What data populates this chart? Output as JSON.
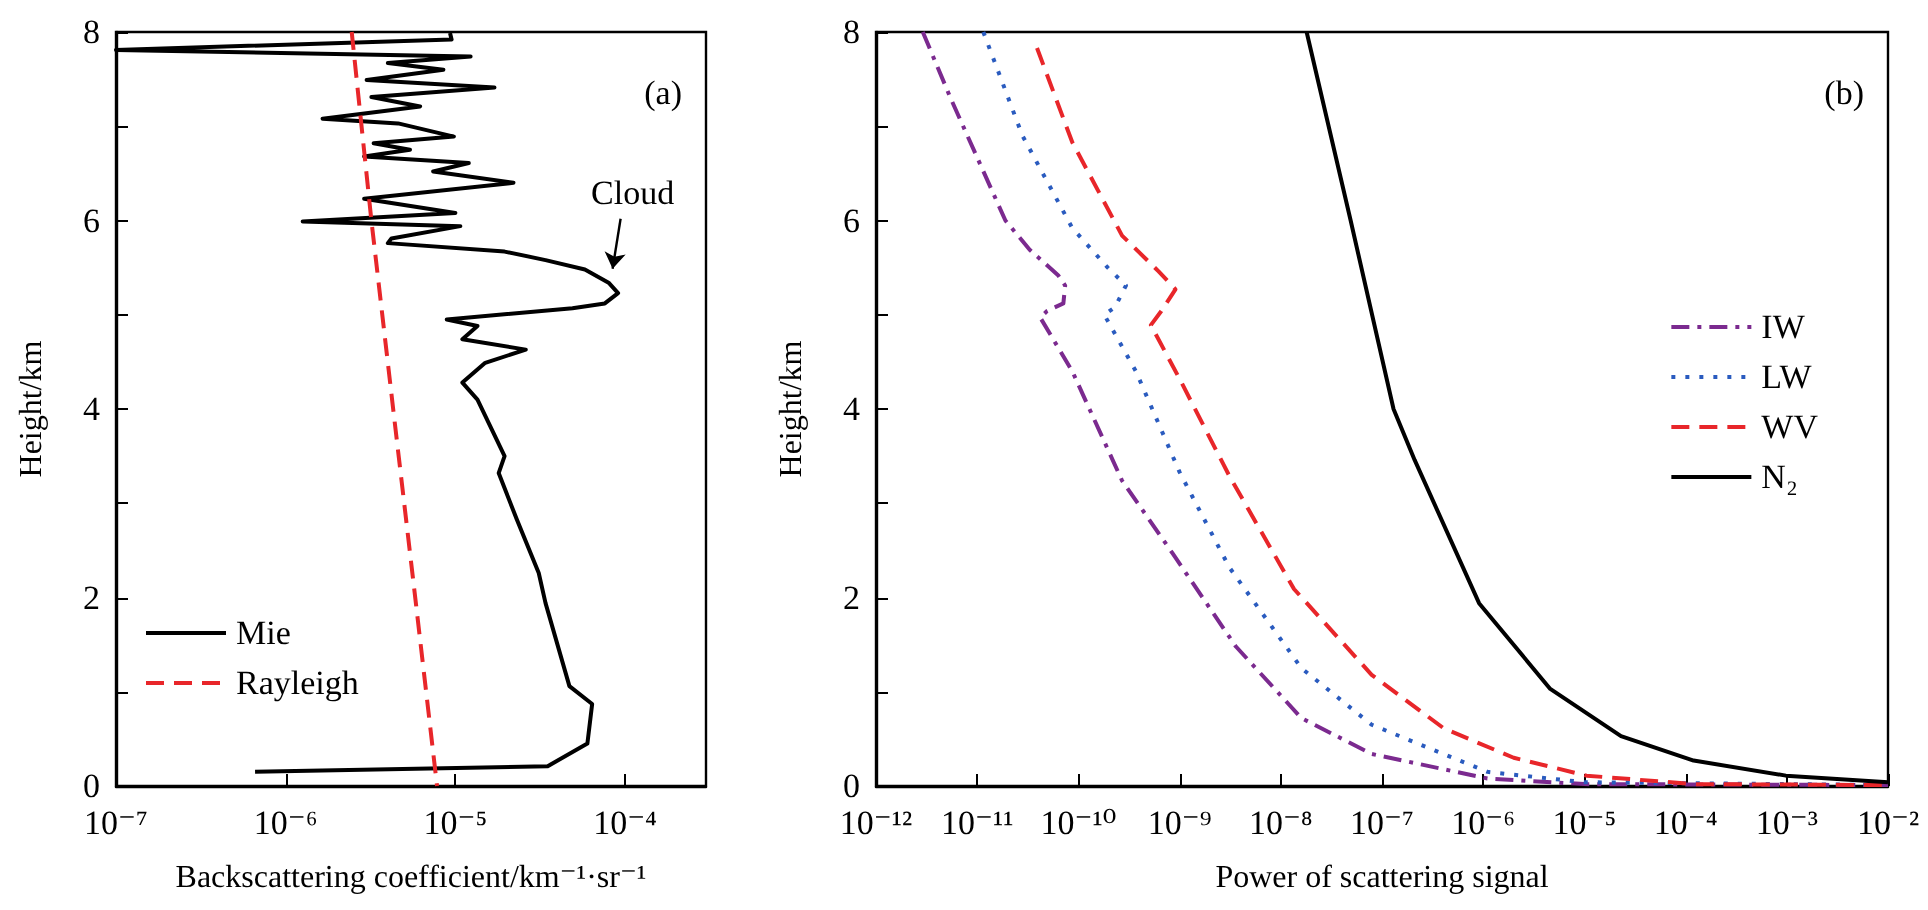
{
  "chart_data": [
    {
      "type": "line",
      "xlabel": "Backscattering coefficient/km⁻¹·sr⁻¹",
      "ylabel": "Height/km",
      "log": "x",
      "legend": "bottom left",
      "grid": false,
      "marker": "none",
      "annotations": [
        "(a)",
        {
          "text": "Cloud",
          "x": 8e-05,
          "y": 5.34
        }
      ],
      "xlim": [
        1e-07,
        0.0003
      ],
      "xticks": [
        {
          "value": 1e-07,
          "label": "10⁻⁷"
        },
        {
          "value": 1e-06,
          "label": "10⁻⁶"
        },
        {
          "value": 1e-05,
          "label": "10⁻⁵"
        },
        {
          "value": 0.0001,
          "label": "10⁻⁴"
        }
      ],
      "ylim": [
        0,
        8
      ],
      "yticks": [
        0,
        {
          "value": 1,
          "label": null
        },
        2,
        {
          "value": 3,
          "label": null
        },
        4,
        {
          "value": 5,
          "label": null
        },
        6,
        {
          "value": 7,
          "label": null
        },
        8
      ],
      "series": [
        {
          "name": "Mie",
          "color": "#000000",
          "line_style": "solid",
          "x": [
            9.3e-06,
            9.5e-06,
            1e-07,
            1.23e-05,
            4e-06,
            8.5e-06,
            3e-06,
            1.7e-05,
            3.2e-06,
            6.2e-06,
            1.65e-06,
            4.6e-06,
            9.8e-06,
            3.3e-06,
            5.4e-06,
            2.9e-06,
            1.2e-05,
            7.4e-06,
            2.2e-05,
            2.9e-06,
            1e-05,
            1.26e-06,
            1.07e-05,
            4.2e-06,
            4e-06,
            1.95e-05,
            3.4e-05,
            5.8e-05,
            8e-05,
            9.1e-05,
            7.6e-05,
            4.9e-05,
            8.9e-06,
            1.35e-05,
            1.1e-05,
            2.6e-05,
            1.5e-05,
            1.1e-05,
            1.35e-05,
            1.95e-05,
            1.8e-05,
            2.3e-05,
            3.1e-05,
            3.4e-05,
            4.7e-05,
            6.4e-05,
            6e-05,
            3.5e-05,
            6.6e-07
          ],
          "values": [
            7.99,
            7.92,
            7.81,
            7.74,
            7.67,
            7.6,
            7.49,
            7.41,
            7.31,
            7.21,
            7.08,
            7.03,
            6.89,
            6.82,
            6.75,
            6.68,
            6.61,
            6.52,
            6.4,
            6.23,
            6.08,
            5.99,
            5.94,
            5.81,
            5.76,
            5.67,
            5.58,
            5.48,
            5.34,
            5.23,
            5.12,
            5.07,
            4.95,
            4.88,
            4.74,
            4.63,
            4.49,
            4.28,
            4.1,
            3.5,
            3.32,
            2.83,
            2.26,
            1.94,
            1.06,
            0.87,
            0.45,
            0.21,
            0.15
          ]
        },
        {
          "name": "Rayleigh",
          "color": "#e8262a",
          "line_style": "dashed",
          "x": [
            2.45e-06,
            3.2e-06,
            4.3e-06,
            5.8e-06,
            7.8e-06
          ],
          "values": [
            8,
            6,
            4,
            2,
            0
          ]
        }
      ]
    },
    {
      "type": "line",
      "xlabel": "Power of scattering signal",
      "ylabel": "Height/km",
      "log": "x",
      "legend": "right",
      "grid": false,
      "marker": "none",
      "annotations": [
        "(b)"
      ],
      "xlim": [
        1e-12,
        0.01
      ],
      "xticks": [
        {
          "value": 1e-12,
          "label": "10⁻¹²"
        },
        {
          "value": 1e-11,
          "label": "10⁻¹¹"
        },
        {
          "value": 1e-10,
          "label": "10⁻¹⁰"
        },
        {
          "value": 1e-09,
          "label": "10⁻⁹"
        },
        {
          "value": 1e-08,
          "label": "10⁻⁸"
        },
        {
          "value": 1e-07,
          "label": "10⁻⁷"
        },
        {
          "value": 1e-06,
          "label": "10⁻⁶"
        },
        {
          "value": 1e-05,
          "label": "10⁻⁵"
        },
        {
          "value": 0.0001,
          "label": "10⁻⁴"
        },
        {
          "value": 0.001,
          "label": "10⁻³"
        },
        {
          "value": 0.01,
          "label": "10⁻²"
        }
      ],
      "ylim": [
        0,
        8
      ],
      "yticks": [
        0,
        {
          "value": 1,
          "label": null
        },
        2,
        {
          "value": 3,
          "label": null
        },
        4,
        {
          "value": 5,
          "label": null
        },
        6,
        {
          "value": 7,
          "label": null
        },
        8
      ],
      "series": [
        {
          "name": "IW",
          "color": "#7b2a8f",
          "line_style": "dashdot",
          "x": [
            2.9e-12,
            5.5e-12,
            1.9e-11,
            3.3e-11,
            6.3e-11,
            7.4e-11,
            7.1e-11,
            4.9e-11,
            4.2e-11,
            8.7e-11,
            2.7e-10,
            8.5e-10,
            3.6e-09,
            1.6e-08,
            7.9e-08,
            1.1e-06,
            1e-05,
            0.01
          ],
          "values": [
            8,
            7.29,
            6,
            5.69,
            5.42,
            5.31,
            5.12,
            5.04,
            4.97,
            4.4,
            3.24,
            2.47,
            1.48,
            0.72,
            0.34,
            0.08,
            0.02,
            0.01
          ]
        },
        {
          "name": "LW",
          "color": "#2a5bbf",
          "line_style": "dotted",
          "x": [
            1.15e-11,
            2.8e-11,
            8.7e-11,
            1.95e-10,
            2.95e-10,
            2.3e-10,
            1.8e-10,
            3.7e-10,
            1e-09,
            3.1e-09,
            1.6e-08,
            7.9e-08,
            1.1e-06,
            1e-05,
            0.01
          ],
          "values": [
            8,
            6.9,
            5.92,
            5.5,
            5.31,
            5.08,
            5,
            4.4,
            3.33,
            2.32,
            1.25,
            0.65,
            0.15,
            0.04,
            0.01
          ]
        },
        {
          "name": "WV",
          "color": "#e8262a",
          "line_style": "dashed",
          "x": [
            3.9e-11,
            8.7e-11,
            2.7e-10,
            6.2e-10,
            9.1e-10,
            6.6e-10,
            5.2e-10,
            1e-09,
            3.1e-09,
            1.35e-08,
            7.9e-08,
            4.1e-07,
            2e-06,
            1.05e-05,
            0.00012,
            0.01
          ],
          "values": [
            7.83,
            6.83,
            5.84,
            5.46,
            5.27,
            5.04,
            4.89,
            4.32,
            3.29,
            2.09,
            1.18,
            0.61,
            0.3,
            0.11,
            0.02,
            0.01
          ]
        },
        {
          "name": "N₂",
          "color": "#000000",
          "line_style": "solid",
          "x": [
            1.8e-08,
            4.9e-08,
            1.3e-07,
            2.1e-07,
            9.1e-07,
            4.6e-06,
            2.3e-05,
            0.00012,
            0.00098,
            0.01
          ],
          "values": [
            8,
            6,
            4,
            3.46,
            1.94,
            1.03,
            0.53,
            0.27,
            0.11,
            0.04
          ]
        }
      ]
    }
  ]
}
